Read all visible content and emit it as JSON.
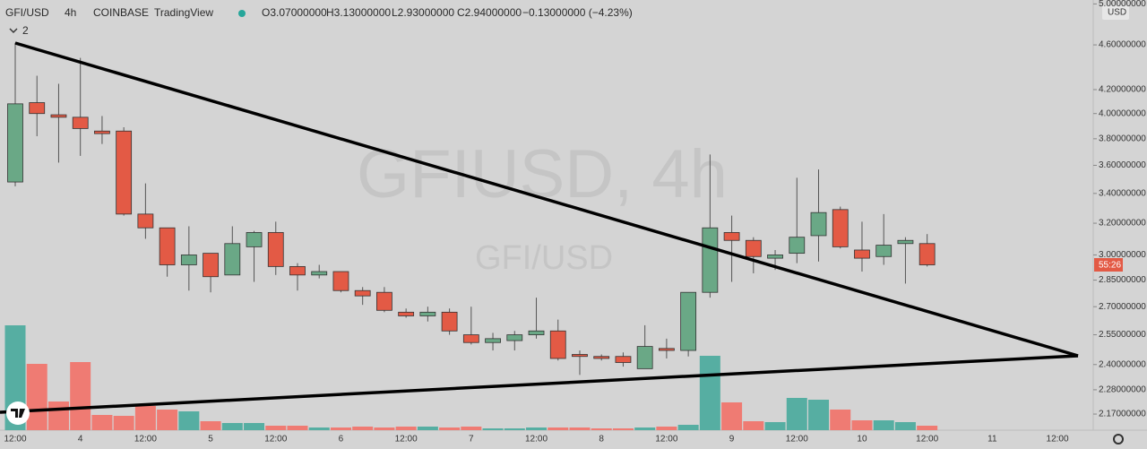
{
  "chart_data": {
    "type": "candlestick",
    "symbol": "GFI/USD",
    "interval": "4h",
    "exchange": "COINBASE",
    "source": "TradingView",
    "watermark": "GFIUSD, 4h",
    "watermark_sub": "GFI/USD",
    "ohlc_labels": [
      "O3.07000000",
      "H3.13000000",
      "L2.93000000",
      "C2.94000000"
    ],
    "change_label": "−0.13000000 (−4.23%)",
    "indicator_count": "2",
    "currency": "USD",
    "countdown": "55:26",
    "categories": [
      "12:00",
      null,
      null,
      "4",
      null,
      null,
      "12:00",
      null,
      null,
      "5",
      null,
      null,
      "12:00",
      null,
      null,
      "6",
      null,
      null,
      "12:00",
      null,
      null,
      "7",
      null,
      null,
      "12:00",
      null,
      null,
      "8",
      null,
      null,
      "12:00",
      null,
      null,
      "9",
      null,
      null,
      "12:00",
      null,
      null,
      "10",
      null,
      null,
      "12:00",
      null,
      null,
      "11",
      null,
      null,
      "12:00"
    ],
    "open": [
      3.48,
      4.09,
      3.99,
      3.97,
      3.86,
      3.86,
      3.26,
      3.17,
      2.94,
      3.01,
      2.88,
      3.05,
      3.14,
      2.93,
      2.88,
      2.9,
      2.79,
      2.78,
      2.67,
      2.65,
      2.67,
      2.55,
      2.51,
      2.52,
      2.55,
      2.57,
      2.45,
      2.44,
      2.44,
      2.38,
      2.48,
      2.47,
      2.78,
      3.14,
      3.09,
      2.98,
      3.01,
      3.12,
      3.29,
      3.03,
      2.99,
      3.07,
      3.07,
      null,
      null,
      null,
      null,
      null,
      null
    ],
    "high": [
      4.62,
      4.32,
      4.25,
      4.48,
      3.98,
      3.89,
      3.47,
      3.17,
      3.18,
      3.01,
      3.18,
      3.15,
      3.21,
      2.95,
      2.94,
      2.9,
      2.81,
      2.81,
      2.69,
      2.7,
      2.69,
      2.7,
      2.56,
      2.57,
      2.75,
      2.63,
      2.47,
      2.45,
      2.46,
      2.6,
      2.53,
      2.78,
      3.68,
      3.25,
      3.11,
      3.03,
      3.51,
      3.57,
      3.31,
      3.21,
      3.26,
      3.11,
      3.13,
      null,
      null,
      null,
      null,
      null,
      null
    ],
    "low": [
      3.45,
      3.82,
      3.62,
      3.67,
      3.76,
      3.25,
      3.1,
      2.87,
      2.79,
      2.78,
      2.88,
      2.84,
      2.88,
      2.79,
      2.86,
      2.78,
      2.71,
      2.67,
      2.64,
      2.62,
      2.55,
      2.5,
      2.47,
      2.47,
      2.53,
      2.42,
      2.35,
      2.42,
      2.39,
      2.38,
      2.43,
      2.44,
      2.75,
      2.84,
      2.89,
      2.91,
      2.95,
      2.96,
      3.04,
      2.9,
      2.94,
      2.83,
      2.93,
      null,
      null,
      null,
      null,
      null,
      null
    ],
    "close": [
      4.08,
      4.0,
      3.97,
      3.88,
      3.84,
      3.26,
      3.17,
      2.94,
      3.0,
      2.87,
      3.07,
      3.14,
      2.93,
      2.88,
      2.9,
      2.79,
      2.76,
      2.68,
      2.65,
      2.67,
      2.57,
      2.51,
      2.53,
      2.55,
      2.57,
      2.43,
      2.44,
      2.43,
      2.41,
      2.49,
      2.47,
      2.78,
      3.17,
      3.09,
      2.99,
      3.0,
      3.11,
      3.27,
      3.05,
      2.98,
      3.06,
      3.09,
      2.94,
      null,
      null,
      null,
      null,
      null,
      null
    ],
    "volume": [
      117,
      74,
      32,
      76,
      17,
      16,
      27,
      23,
      21,
      10,
      8,
      8,
      5,
      5,
      3,
      3,
      4,
      3,
      4,
      4,
      3,
      4,
      2,
      2,
      3,
      3,
      3,
      2,
      2,
      3,
      4,
      6,
      83,
      31,
      10,
      9,
      36,
      34,
      23,
      11,
      11,
      9,
      5,
      null,
      null,
      null,
      null,
      null,
      null
    ],
    "volume_lim": [
      0,
      480
    ],
    "up_color": "#6aa886",
    "down_color": "#e35a45",
    "volume_up_color": "#56aea2",
    "volume_down_color": "#ef7b73",
    "log_scale": true,
    "ylim": [
      2.1,
      5.04
    ],
    "yticks": [
      {
        "value": 5.0,
        "label": "5.00000000"
      },
      {
        "value": 4.6,
        "label": "4.60000000"
      },
      {
        "value": 4.2,
        "label": "4.20000000"
      },
      {
        "value": 4.0,
        "label": "4.00000000"
      },
      {
        "value": 3.8,
        "label": "3.80000000"
      },
      {
        "value": 3.6,
        "label": "3.60000000"
      },
      {
        "value": 3.4,
        "label": "3.40000000"
      },
      {
        "value": 3.2,
        "label": "3.20000000"
      },
      {
        "value": 3.0,
        "label": "3.00000000"
      },
      {
        "value": 2.85,
        "label": "2.85000000"
      },
      {
        "value": 2.7,
        "label": "2.70000000"
      },
      {
        "value": 2.55,
        "label": "2.55000000"
      },
      {
        "value": 2.4,
        "label": "2.40000000"
      },
      {
        "value": 2.28,
        "label": "2.28000000"
      },
      {
        "value": 2.17,
        "label": "2.17000000"
      }
    ]
  }
}
